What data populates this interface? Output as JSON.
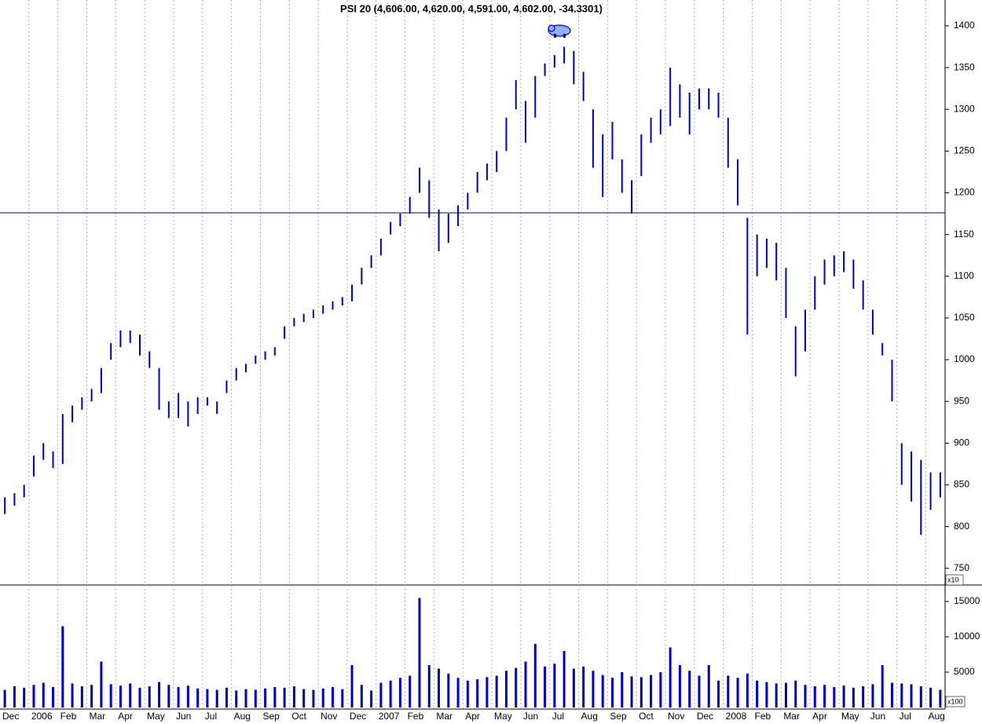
{
  "chart_data": [
    {
      "type": "ohlc",
      "title": "PSI 20 (4,606.00, 4,620.00, 4,591.00, 4,602.00, -34.3301)",
      "categories": [
        "Dec",
        null,
        null,
        "2006",
        null,
        null,
        "Feb",
        null,
        null,
        "Mar",
        null,
        null,
        "Apr",
        null,
        null,
        "May",
        null,
        null,
        "Jun",
        null,
        null,
        "Jul",
        null,
        null,
        "Aug",
        null,
        null,
        "Sep",
        null,
        null,
        "Oct",
        null,
        null,
        "Nov",
        null,
        null,
        "Dec",
        null,
        null,
        "2007",
        null,
        null,
        "Feb",
        null,
        null,
        "Mar",
        null,
        null,
        "Apr",
        null,
        null,
        "May",
        null,
        null,
        "Jun",
        null,
        null,
        "Jul",
        null,
        null,
        "Aug",
        null,
        null,
        "Sep",
        null,
        null,
        "Oct",
        null,
        null,
        "Nov",
        null,
        null,
        "Dec",
        null,
        null,
        "2008",
        null,
        null,
        "Feb",
        null,
        null,
        "Mar",
        null,
        null,
        "Apr",
        null,
        null,
        "May",
        null,
        null,
        "Jun",
        null,
        null,
        "Jul",
        null,
        null,
        "Aug",
        null
      ],
      "high": [
        835,
        840,
        850,
        885,
        900,
        890,
        935,
        945,
        955,
        965,
        990,
        1020,
        1035,
        1035,
        1030,
        1010,
        990,
        950,
        960,
        950,
        955,
        955,
        950,
        975,
        990,
        995,
        1005,
        1010,
        1015,
        1040,
        1050,
        1055,
        1060,
        1065,
        1070,
        1075,
        1090,
        1110,
        1125,
        1145,
        1165,
        1175,
        1195,
        1230,
        1215,
        1180,
        1175,
        1185,
        1200,
        1225,
        1235,
        1250,
        1290,
        1335,
        1310,
        1340,
        1355,
        1365,
        1375,
        1370,
        1345,
        1300,
        1270,
        1285,
        1240,
        1215,
        1270,
        1290,
        1300,
        1350,
        1330,
        1320,
        1325,
        1325,
        1320,
        1290,
        1240,
        1170,
        1150,
        1145,
        1140,
        1110,
        1040,
        1060,
        1100,
        1120,
        1125,
        1130,
        1120,
        1095,
        1060,
        1020,
        1000,
        900,
        890,
        880,
        865,
        865
      ],
      "low": [
        815,
        825,
        835,
        860,
        880,
        870,
        875,
        925,
        940,
        950,
        960,
        1000,
        1015,
        1020,
        1005,
        990,
        940,
        930,
        930,
        920,
        935,
        945,
        935,
        960,
        975,
        985,
        995,
        1000,
        1005,
        1025,
        1040,
        1045,
        1050,
        1055,
        1060,
        1065,
        1070,
        1090,
        1110,
        1125,
        1150,
        1160,
        1175,
        1200,
        1170,
        1130,
        1140,
        1160,
        1180,
        1200,
        1215,
        1225,
        1250,
        1300,
        1260,
        1290,
        1340,
        1350,
        1355,
        1330,
        1310,
        1230,
        1195,
        1240,
        1200,
        1175,
        1220,
        1260,
        1270,
        1280,
        1290,
        1270,
        1300,
        1300,
        1290,
        1230,
        1185,
        1030,
        1100,
        1110,
        1095,
        1050,
        980,
        1010,
        1060,
        1090,
        1100,
        1105,
        1085,
        1060,
        1030,
        1005,
        950,
        850,
        830,
        790,
        820,
        835
      ],
      "color": "#0000cc",
      "reference_line": 1176,
      "scale_label": "x10",
      "ylim": [
        730,
        1431
      ],
      "yticks": [
        750,
        800,
        850,
        900,
        950,
        1000,
        1050,
        1100,
        1150,
        1200,
        1250,
        1300,
        1350,
        1400
      ],
      "grid": true
    },
    {
      "type": "bar",
      "values": [
        2500,
        3000,
        2800,
        3200,
        3500,
        2900,
        11500,
        3400,
        3000,
        3200,
        6500,
        3300,
        3100,
        3400,
        2800,
        3000,
        3600,
        3200,
        2900,
        3100,
        2700,
        2600,
        2500,
        2800,
        2400,
        2600,
        2500,
        2700,
        2900,
        2800,
        3000,
        2600,
        2500,
        2700,
        2900,
        2600,
        6000,
        3200,
        2400,
        3500,
        3800,
        4200,
        4500,
        15500,
        6000,
        5500,
        4800,
        4200,
        3800,
        4000,
        4300,
        4500,
        5200,
        5600,
        6500,
        9000,
        5800,
        6200,
        8000,
        5500,
        5800,
        5200,
        4600,
        4200,
        5000,
        4400,
        4300,
        4600,
        5000,
        8500,
        6000,
        5200,
        4500,
        6000,
        3800,
        4500,
        4200,
        4800,
        3800,
        3600,
        3400,
        3500,
        3800,
        3200,
        3000,
        3200,
        2900,
        3100,
        2800,
        3000,
        3300,
        6000,
        3500,
        3400,
        3300,
        3000,
        2800,
        2500
      ],
      "color": "#0000cc",
      "scale_label": "x100",
      "ylim": [
        0,
        17000
      ],
      "yticks": [
        5000,
        10000,
        15000
      ]
    }
  ]
}
